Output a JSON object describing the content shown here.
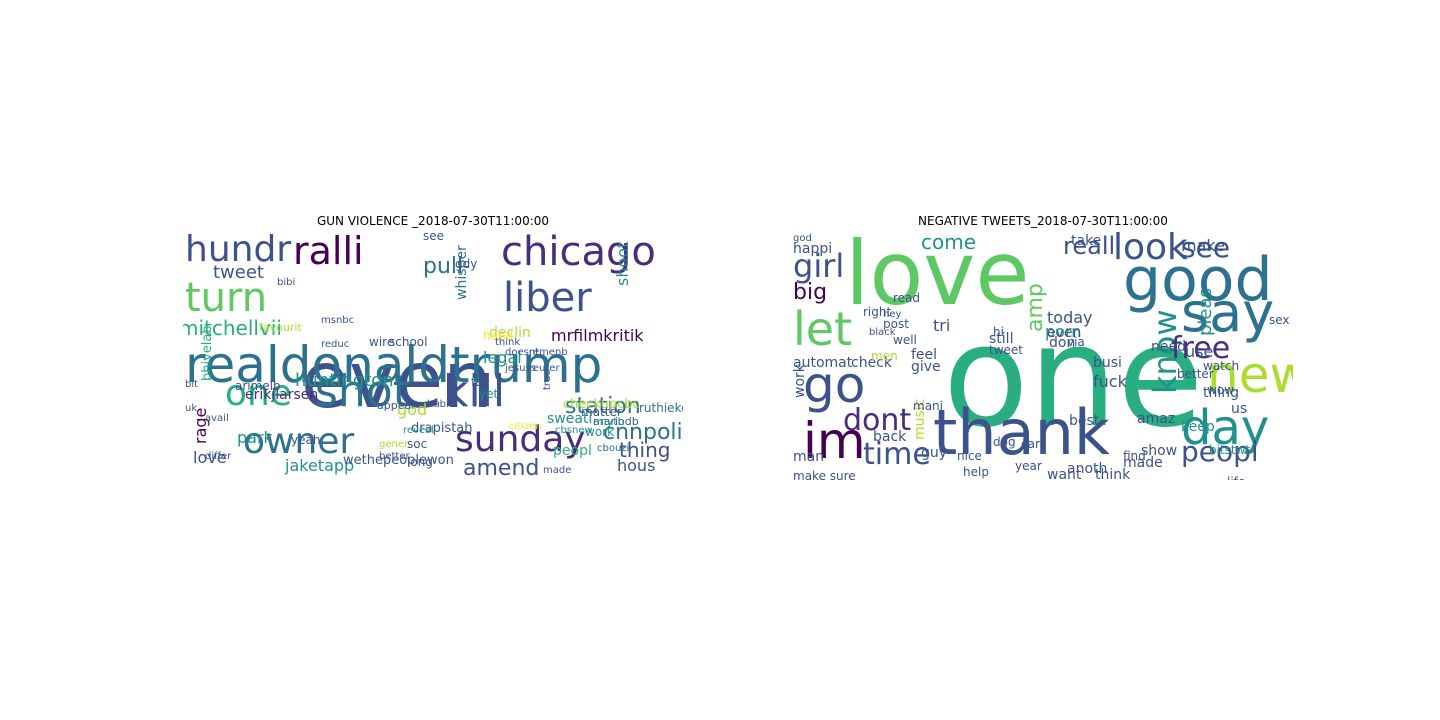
{
  "palette": {
    "dark_purple": "#440154",
    "indigo": "#472d7b",
    "blue_purple": "#3b528b",
    "steel_blue": "#2c728e",
    "teal": "#21918c",
    "green_teal": "#28ae80",
    "green": "#5ec962",
    "lime": "#addc30",
    "yellow": "#fde725"
  },
  "panels": [
    {
      "title": "GUN VIOLENCE _2018-07-30T11:00:00",
      "words": [
        {
          "text": "even",
          "color": "#3b528b"
        },
        {
          "text": "realdonaldtrump",
          "color": "#2c728e"
        },
        {
          "text": "hundr",
          "color": "#3b528b"
        },
        {
          "text": "ralli",
          "color": "#440154"
        },
        {
          "text": "chicago",
          "color": "#472d7b"
        },
        {
          "text": "turn",
          "color": "#5ec962"
        },
        {
          "text": "liber",
          "color": "#3b528b"
        },
        {
          "text": "one",
          "color": "#28ae80"
        },
        {
          "text": "shot",
          "color": "#2c728e"
        },
        {
          "text": "kill",
          "color": "#3b528b"
        },
        {
          "text": "owner",
          "color": "#2c728e"
        },
        {
          "text": "sunday",
          "color": "#472d7b"
        },
        {
          "text": "huntington",
          "color": "#21918c"
        },
        {
          "text": "station",
          "color": "#2c728e"
        },
        {
          "text": "cnnpolit",
          "color": "#2c728e"
        },
        {
          "text": "mitchellvii",
          "color": "#28ae80"
        },
        {
          "text": "jaketapp",
          "color": "#21918c"
        },
        {
          "text": "amend",
          "color": "#3b528b"
        },
        {
          "text": "love",
          "color": "#3b528b"
        },
        {
          "text": "park",
          "color": "#21918c"
        },
        {
          "text": "rage",
          "color": "#440154"
        },
        {
          "text": "thing",
          "color": "#3b528b"
        },
        {
          "text": "hous",
          "color": "#3b528b"
        },
        {
          "text": "pull",
          "color": "#2c728e"
        },
        {
          "text": "tweet",
          "color": "#3b528b"
        },
        {
          "text": "god",
          "color": "#addc30"
        },
        {
          "text": "mrfilmkritik",
          "color": "#440154"
        },
        {
          "text": "erikjlarsen",
          "color": "#472d7b"
        },
        {
          "text": "declin",
          "color": "#addc30"
        },
        {
          "text": "legal",
          "color": "#21918c"
        },
        {
          "text": "whisper",
          "color": "#2c728e"
        },
        {
          "text": "wire",
          "color": "#3b528b"
        },
        {
          "text": "school",
          "color": "#3b528b"
        },
        {
          "text": "bhivelab",
          "color": "#28ae80"
        },
        {
          "text": "drapistah",
          "color": "#3b528b"
        },
        {
          "text": "wethepeoplewon",
          "color": "#3b528b"
        },
        {
          "text": "checkupcbc",
          "color": "#addc30"
        },
        {
          "text": "sweati",
          "color": "#21918c"
        },
        {
          "text": "peopl",
          "color": "#28ae80"
        },
        {
          "text": "work",
          "color": "#21918c"
        },
        {
          "text": "matter",
          "color": "#3b528b"
        },
        {
          "text": "ruthieketchup",
          "color": "#2c728e"
        },
        {
          "text": "shoot",
          "color": "#21918c"
        },
        {
          "text": "yeah",
          "color": "#3b528b"
        },
        {
          "text": "soc",
          "color": "#3b528b"
        },
        {
          "text": "long",
          "color": "#3b528b"
        },
        {
          "text": "gener",
          "color": "#addc30"
        },
        {
          "text": "differ",
          "color": "#3b528b"
        },
        {
          "text": "cbouzi",
          "color": "#2c728e"
        },
        {
          "text": "fat",
          "color": "#3b528b"
        },
        {
          "text": "yet",
          "color": "#21918c"
        },
        {
          "text": "hand",
          "color": "#fde725"
        },
        {
          "text": "favourit",
          "color": "#addc30"
        },
        {
          "text": "arimelb",
          "color": "#3b528b"
        },
        {
          "text": "reduc",
          "color": "#3b528b"
        },
        {
          "text": "mariodb",
          "color": "#3b528b"
        },
        {
          "text": "reveal",
          "color": "#21918c"
        },
        {
          "text": "hubri",
          "color": "#3b528b"
        },
        {
          "text": "appear",
          "color": "#3b528b"
        },
        {
          "text": "better",
          "color": "#3b528b"
        },
        {
          "text": "anyth",
          "color": "#21918c"
        },
        {
          "text": "made",
          "color": "#3b528b"
        },
        {
          "text": "doesnt",
          "color": "#3b528b"
        },
        {
          "text": "remenb",
          "color": "#3b528b"
        },
        {
          "text": "think",
          "color": "#3b528b"
        },
        {
          "text": "jesuss",
          "color": "#3b528b"
        },
        {
          "text": "reuter",
          "color": "#3b528b"
        },
        {
          "text": "true",
          "color": "#3b528b"
        },
        {
          "text": "citizen",
          "color": "#fde725"
        },
        {
          "text": "cbsnew",
          "color": "#21918c"
        },
        {
          "text": "msnbc",
          "color": "#3b528b"
        },
        {
          "text": "bibi",
          "color": "#3b528b"
        },
        {
          "text": "avail",
          "color": "#3b528b"
        },
        {
          "text": "bit",
          "color": "#3b528b"
        },
        {
          "text": "uk",
          "color": "#3b528b"
        },
        {
          "text": "see",
          "color": "#3b528b"
        },
        {
          "text": "gdy",
          "color": "#3b528b"
        }
      ]
    },
    {
      "title": "NEGATIVE TWEETS_2018-07-30T11:00:00",
      "words": [
        {
          "text": "one",
          "color": "#28ae80"
        },
        {
          "text": "love",
          "color": "#5ec962"
        },
        {
          "text": "thank",
          "color": "#3b528b"
        },
        {
          "text": "good",
          "color": "#2c728e"
        },
        {
          "text": "say",
          "color": "#2c728e"
        },
        {
          "text": "new",
          "color": "#addc30"
        },
        {
          "text": "day",
          "color": "#21918c"
        },
        {
          "text": "im",
          "color": "#440154"
        },
        {
          "text": "go",
          "color": "#3b528b"
        },
        {
          "text": "let",
          "color": "#5ec962"
        },
        {
          "text": "know",
          "color": "#21918c"
        },
        {
          "text": "look",
          "color": "#3b528b"
        },
        {
          "text": "girl",
          "color": "#3b528b"
        },
        {
          "text": "dont",
          "color": "#472d7b"
        },
        {
          "text": "time",
          "color": "#3b528b"
        },
        {
          "text": "free",
          "color": "#472d7b"
        },
        {
          "text": "peopl",
          "color": "#3b528b"
        },
        {
          "text": "realli",
          "color": "#3b528b"
        },
        {
          "text": "see",
          "color": "#3b528b"
        },
        {
          "text": "big",
          "color": "#440154"
        },
        {
          "text": "amp",
          "color": "#5ec962"
        },
        {
          "text": "come",
          "color": "#21918c"
        },
        {
          "text": "fuck",
          "color": "#3b528b"
        },
        {
          "text": "today",
          "color": "#3b528b"
        },
        {
          "text": "use",
          "color": "#3b528b"
        },
        {
          "text": "pleas",
          "color": "#21918c"
        },
        {
          "text": "make",
          "color": "#3b528b"
        },
        {
          "text": "best",
          "color": "#3b528b"
        },
        {
          "text": "take",
          "color": "#3b528b"
        },
        {
          "text": "give",
          "color": "#3b528b"
        },
        {
          "text": "back",
          "color": "#3b528b"
        },
        {
          "text": "automat",
          "color": "#3b528b"
        },
        {
          "text": "check",
          "color": "#3b528b"
        },
        {
          "text": "tri",
          "color": "#3b528b"
        },
        {
          "text": "porn",
          "color": "#21918c"
        },
        {
          "text": "even",
          "color": "#3b528b"
        },
        {
          "text": "don",
          "color": "#3b528b"
        },
        {
          "text": "happi",
          "color": "#3b528b"
        },
        {
          "text": "work",
          "color": "#3b528b"
        },
        {
          "text": "want",
          "color": "#3b528b"
        },
        {
          "text": "think",
          "color": "#3b528b"
        },
        {
          "text": "made",
          "color": "#3b528b"
        },
        {
          "text": "show",
          "color": "#3b528b"
        },
        {
          "text": "busi",
          "color": "#3b528b"
        },
        {
          "text": "still",
          "color": "#3b528b"
        },
        {
          "text": "feel",
          "color": "#3b528b"
        },
        {
          "text": "us",
          "color": "#3b528b"
        },
        {
          "text": "music",
          "color": "#addc30"
        },
        {
          "text": "amaz",
          "color": "#3b528b"
        },
        {
          "text": "need",
          "color": "#3b528b"
        },
        {
          "text": "thing",
          "color": "#3b528b"
        },
        {
          "text": "man",
          "color": "#3b528b"
        },
        {
          "text": "guy",
          "color": "#3b528b"
        },
        {
          "text": "mani",
          "color": "#3b528b"
        },
        {
          "text": "anoth",
          "color": "#3b528b"
        },
        {
          "text": "keep",
          "color": "#21918c"
        },
        {
          "text": "post",
          "color": "#3b528b"
        },
        {
          "text": "hi",
          "color": "#3b528b"
        },
        {
          "text": "well",
          "color": "#3b528b"
        },
        {
          "text": "right",
          "color": "#3b528b"
        },
        {
          "text": "read",
          "color": "#3b528b"
        },
        {
          "text": "via",
          "color": "#3b528b"
        },
        {
          "text": "tweet",
          "color": "#3b528b"
        },
        {
          "text": "find",
          "color": "#3b528b"
        },
        {
          "text": "better",
          "color": "#3b528b"
        },
        {
          "text": "watch",
          "color": "#3b528b"
        },
        {
          "text": "year",
          "color": "#3b528b"
        },
        {
          "text": "help",
          "color": "#3b528b"
        },
        {
          "text": "nice",
          "color": "#3b528b"
        },
        {
          "text": "life",
          "color": "#3b528b"
        },
        {
          "text": "wow",
          "color": "#3b528b"
        },
        {
          "text": "make sure",
          "color": "#3b528b"
        },
        {
          "text": "bitstwt",
          "color": "#21918c"
        },
        {
          "text": "sex",
          "color": "#3b528b"
        },
        {
          "text": "dog",
          "color": "#3b528b"
        },
        {
          "text": "car",
          "color": "#3b528b"
        },
        {
          "text": "men",
          "color": "#addc30"
        },
        {
          "text": "black",
          "color": "#3b528b"
        },
        {
          "text": "god",
          "color": "#3b528b"
        },
        {
          "text": "hey",
          "color": "#3b528b"
        }
      ]
    }
  ]
}
